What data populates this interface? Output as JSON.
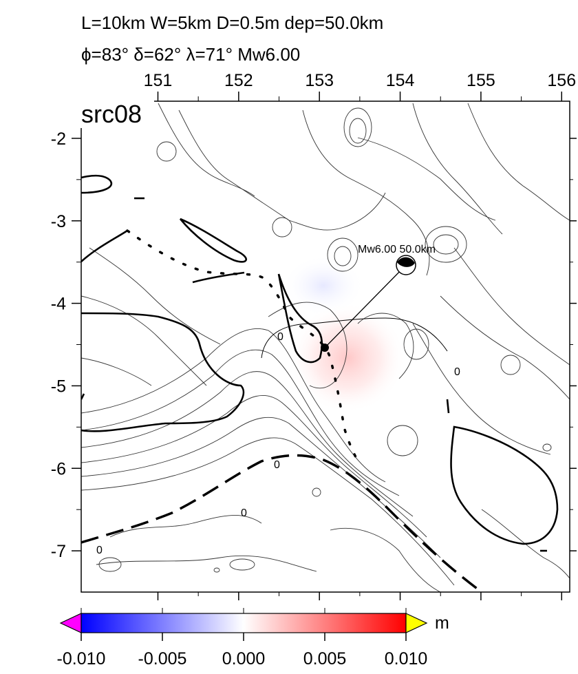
{
  "header": {
    "line1": "L=10km W=5km D=0.5m dep=50.0km",
    "line2": "ϕ=83° δ=62° λ=71° Mw6.00"
  },
  "map": {
    "panel_label": "src08",
    "lon_ticks": [
      "151",
      "152",
      "153",
      "154",
      "155",
      "156"
    ],
    "lat_ticks": [
      "-2",
      "-3",
      "-4",
      "-5",
      "-6",
      "-7"
    ],
    "lon_range": [
      150.05,
      156.1
    ],
    "lat_range": [
      -7.5,
      -1.55
    ],
    "contour_zero_label": "0",
    "source": {
      "label": "Mw6.00 50.0km",
      "lon": 153.1,
      "lat": -4.5,
      "beachball_lon": 154.1,
      "beachball_lat": -3.5
    }
  },
  "colorbar": {
    "unit": "m",
    "ticks": [
      "-0.010",
      "-0.005",
      "0.000",
      "0.005",
      "0.010"
    ],
    "range": [
      -0.01,
      0.01
    ],
    "colors": {
      "min": "#0000ff",
      "mid": "#ffffff",
      "max": "#ff0000",
      "under": "#ff00ff",
      "over": "#ffff00"
    }
  }
}
